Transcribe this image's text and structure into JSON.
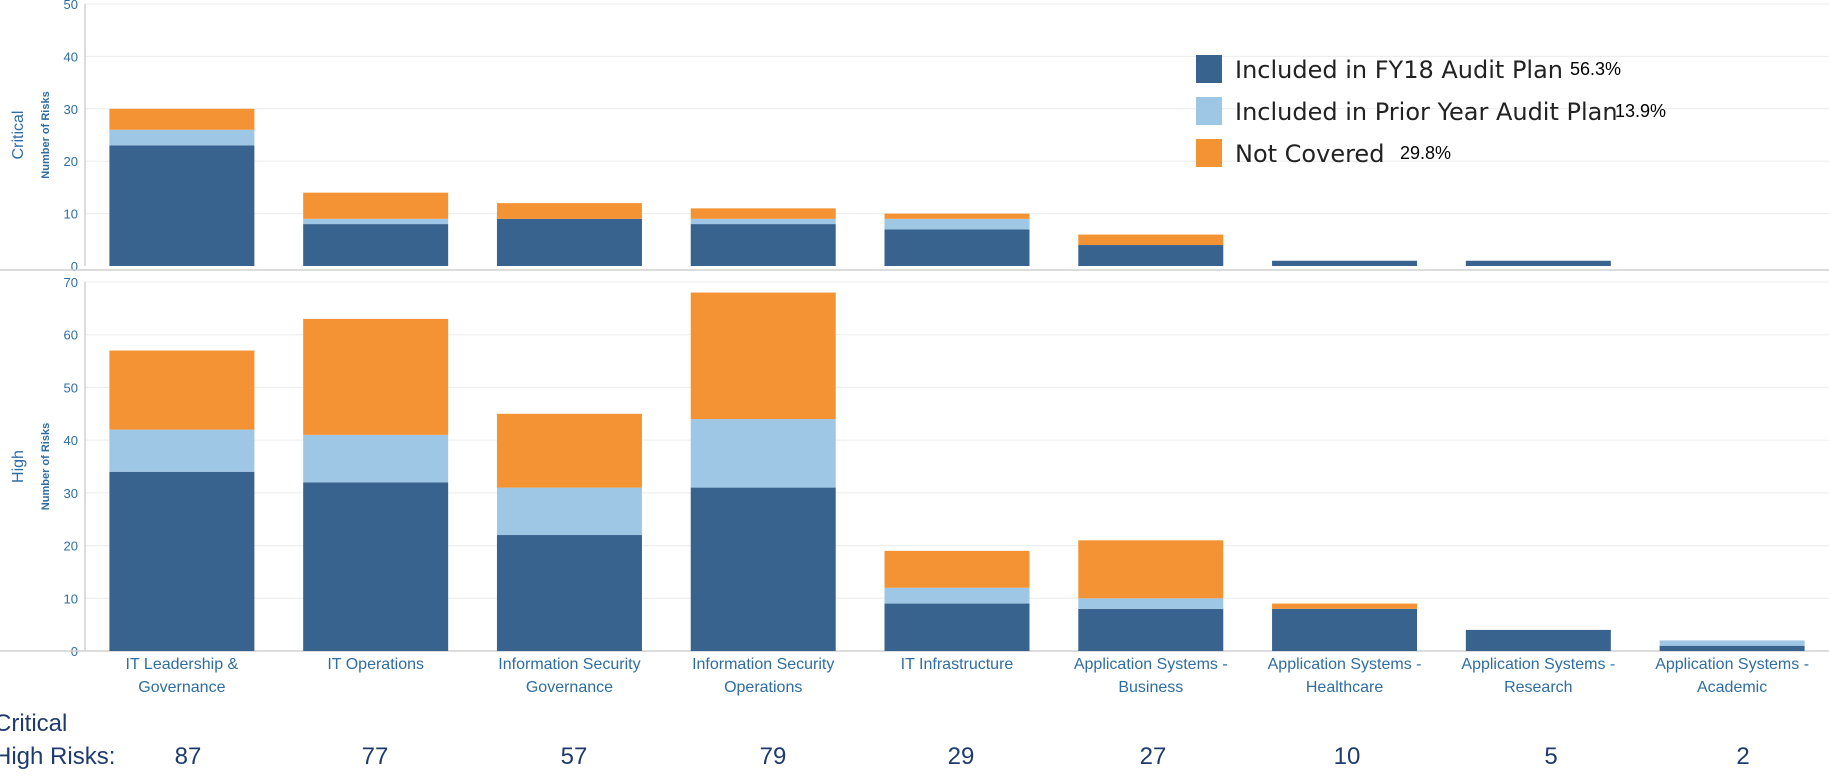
{
  "chart_data": {
    "type": "bar",
    "stacked": true,
    "categories": [
      [
        "IT Leadership &",
        "Governance"
      ],
      [
        "IT Operations"
      ],
      [
        "Information Security",
        "Governance"
      ],
      [
        "Information Security",
        "Operations"
      ],
      [
        "IT Infrastructure"
      ],
      [
        "Application Systems -",
        "Business"
      ],
      [
        "Application Systems -",
        "Healthcare"
      ],
      [
        "Application Systems -",
        "Research"
      ],
      [
        "Application Systems -",
        "Academic"
      ]
    ],
    "legend": [
      {
        "name": "Included in FY18 Audit Plan",
        "pct": "56.3%",
        "color": "#39638f"
      },
      {
        "name": "Included in Prior Year Audit Plan",
        "pct": "13.9%",
        "color": "#9ec7e5"
      },
      {
        "name": "Not Covered",
        "pct": "29.8%",
        "color": "#f39334"
      }
    ],
    "panels": [
      {
        "label": "Critical",
        "ylabel": "Number of Risks",
        "ylim": [
          0,
          50
        ],
        "ticks": [
          0,
          10,
          20,
          30,
          40,
          50
        ],
        "series": [
          {
            "name": "Included in FY18 Audit Plan",
            "values": [
              23,
              8,
              9,
              8,
              7,
              4,
              1,
              1,
              0
            ]
          },
          {
            "name": "Included in Prior Year Audit Plan",
            "values": [
              3,
              1,
              0,
              1,
              2,
              0,
              0,
              0,
              0
            ]
          },
          {
            "name": "Not Covered",
            "values": [
              4,
              5,
              3,
              2,
              1,
              2,
              0,
              0,
              0
            ]
          }
        ]
      },
      {
        "label": "High",
        "ylabel": "Number of Risks",
        "ylim": [
          0,
          70
        ],
        "ticks": [
          0,
          10,
          20,
          30,
          40,
          50,
          60,
          70
        ],
        "series": [
          {
            "name": "Included in FY18 Audit Plan",
            "values": [
              34,
              32,
              22,
              31,
              9,
              8,
              8,
              4,
              1
            ]
          },
          {
            "name": "Included in Prior Year Audit Plan",
            "values": [
              8,
              9,
              9,
              13,
              3,
              2,
              0,
              0,
              1
            ]
          },
          {
            "name": "Not Covered",
            "values": [
              15,
              22,
              14,
              24,
              7,
              11,
              1,
              0,
              0
            ]
          }
        ]
      }
    ],
    "totals_label": [
      "Critical",
      "High Risks:"
    ],
    "totals": [
      "87",
      "77",
      "57",
      "79",
      "29",
      "27",
      "10",
      "5",
      "2"
    ]
  }
}
